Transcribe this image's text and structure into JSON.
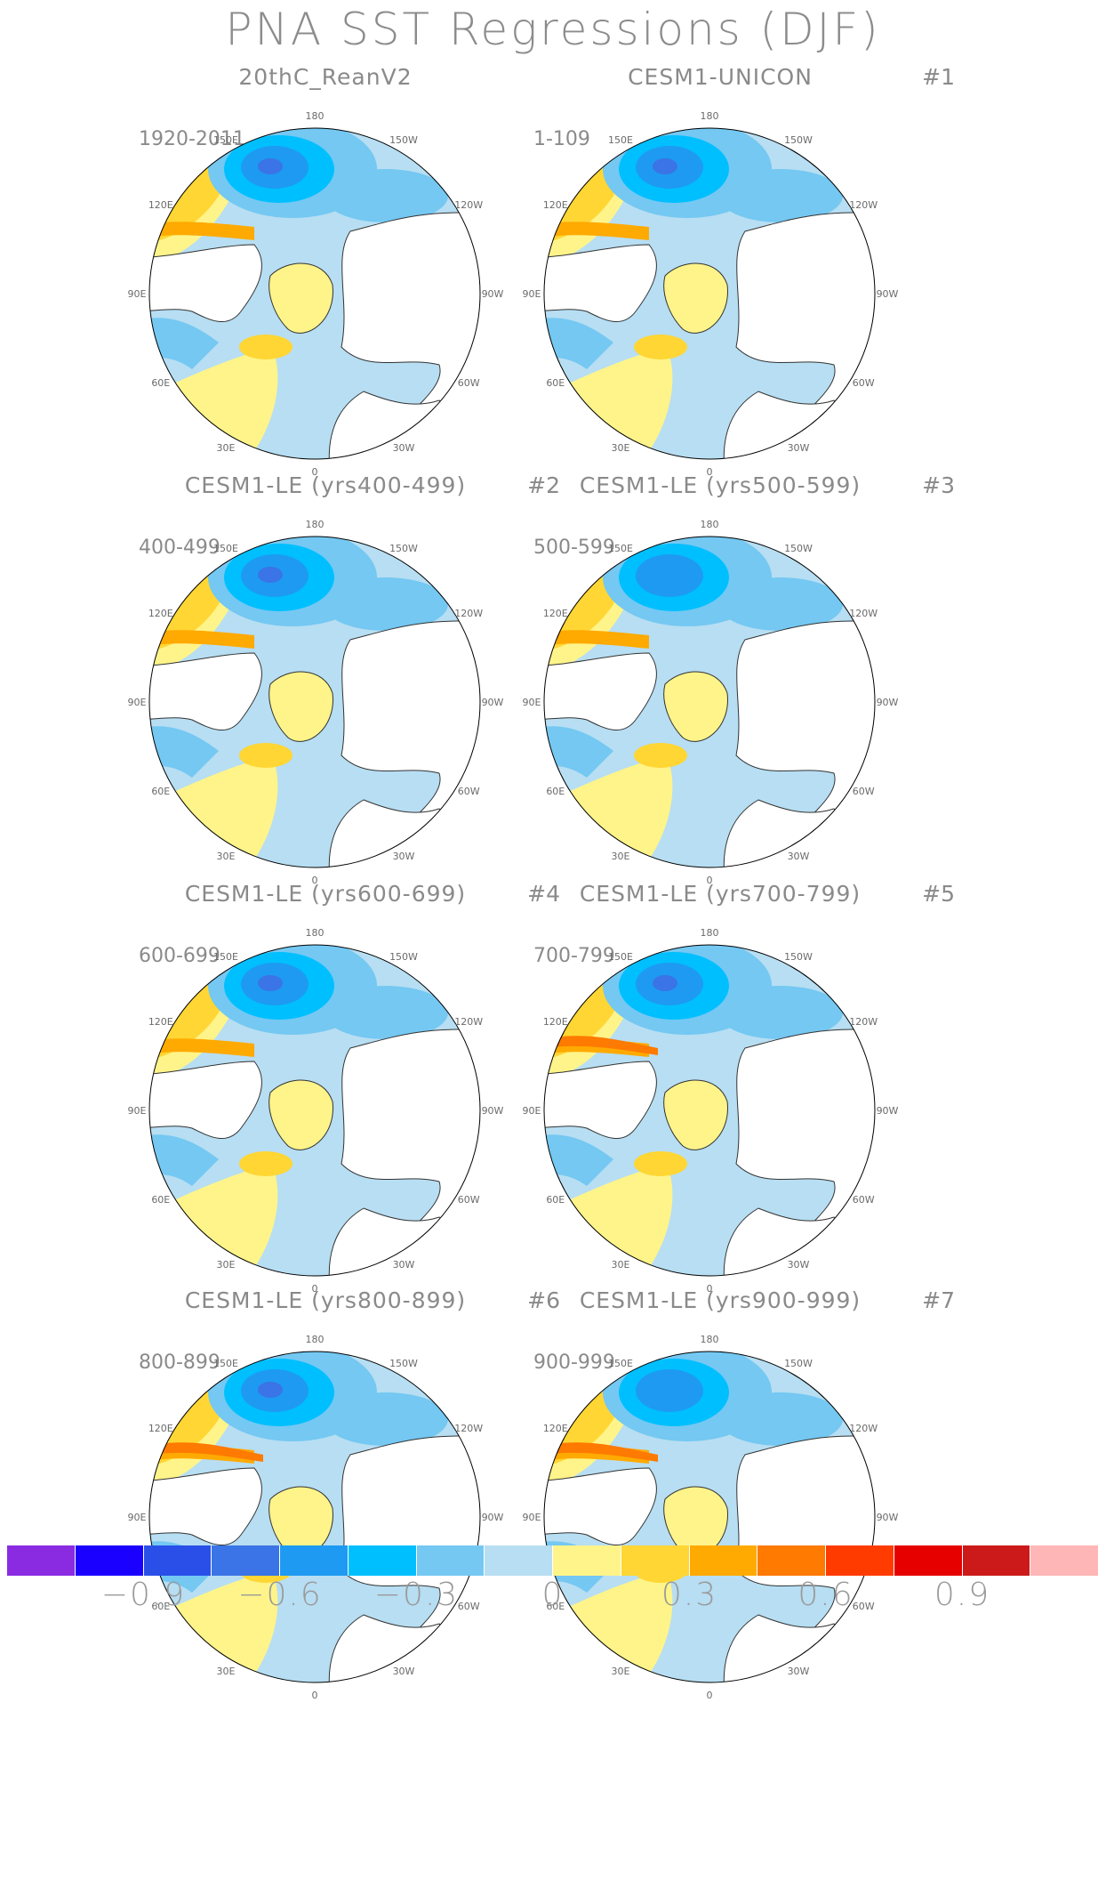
{
  "title": "PNA SST Regressions (DJF)",
  "panels": [
    {
      "title": "20thC_ReanV2",
      "num": "",
      "period": "1920-2011"
    },
    {
      "title": "CESM1-UNICON",
      "num": "#1",
      "period": "1-109"
    },
    {
      "title": "CESM1-LE (yrs400-499)",
      "num": "#2",
      "period": "400-499"
    },
    {
      "title": "CESM1-LE (yrs500-599)",
      "num": "#3",
      "period": "500-599"
    },
    {
      "title": "CESM1-LE (yrs600-699)",
      "num": "#4",
      "period": "600-699"
    },
    {
      "title": "CESM1-LE (yrs700-799)",
      "num": "#5",
      "period": "700-799"
    },
    {
      "title": "CESM1-LE (yrs800-899)",
      "num": "#6",
      "period": "800-899"
    },
    {
      "title": "CESM1-LE (yrs900-999)",
      "num": "#7",
      "period": "900-999"
    }
  ],
  "longitude_labels": [
    "180",
    "150E",
    "120E",
    "90E",
    "60E",
    "30E",
    "0",
    "30W",
    "60W",
    "90W",
    "120W",
    "150W"
  ],
  "colorbar": {
    "colors": [
      "#8a2be2",
      "#1a00ff",
      "#2a4fe8",
      "#3a74e6",
      "#1e9af2",
      "#00bfff",
      "#74c8f2",
      "#b7def2",
      "#fff48a",
      "#ffd633",
      "#ffaa00",
      "#ff7a00",
      "#ff3b00",
      "#e60000",
      "#cc1a1a",
      "#ffb6b6"
    ],
    "labels": [
      "−0.9",
      "−0.6",
      "−0.3",
      "0",
      "0.3",
      "0.6",
      "0.9"
    ]
  }
}
